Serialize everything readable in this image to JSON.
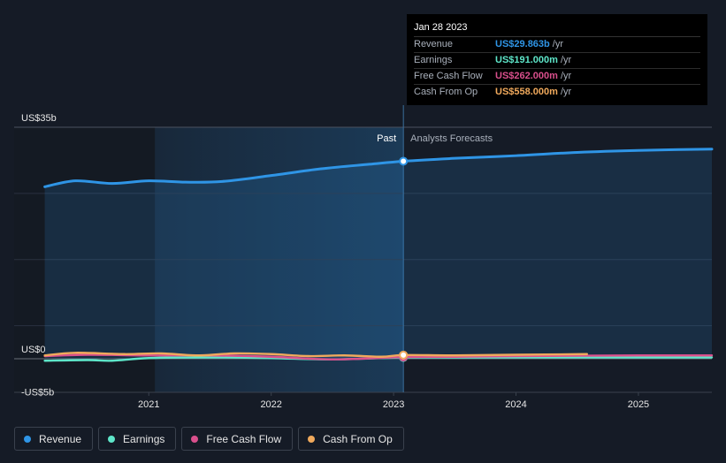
{
  "chart_data": {
    "type": "line",
    "title": "",
    "y_unit": "US$",
    "y_ticks": [
      {
        "value": 35,
        "label": "US$35b"
      },
      {
        "value": 0,
        "label": "US$0"
      },
      {
        "value": -5,
        "label": "-US$5b"
      }
    ],
    "ylim": [
      -5,
      35
    ],
    "x_ticks": [
      {
        "value": 2021,
        "label": "2021"
      },
      {
        "value": 2022,
        "label": "2022"
      },
      {
        "value": 2023,
        "label": "2023"
      },
      {
        "value": 2024,
        "label": "2024"
      },
      {
        "value": 2025,
        "label": "2025"
      }
    ],
    "xlim": [
      2019.9,
      2025.6
    ],
    "past_label": "Past",
    "forecast_label": "Analysts Forecasts",
    "past_start": 2021.05,
    "divider": 2023.08,
    "series": [
      {
        "name": "Revenue",
        "color": "#2f95e6",
        "fill": true,
        "x": [
          2020.15,
          2020.4,
          2020.7,
          2021.0,
          2021.3,
          2021.6,
          2022.0,
          2022.4,
          2022.8,
          2023.08,
          2023.5,
          2024.0,
          2024.5,
          2025.0,
          2025.6
        ],
        "values": [
          26.0,
          26.9,
          26.5,
          26.9,
          26.7,
          26.8,
          27.7,
          28.7,
          29.4,
          29.863,
          30.3,
          30.7,
          31.2,
          31.5,
          31.7
        ]
      },
      {
        "name": "Earnings",
        "color": "#5ee6c9",
        "x": [
          2020.15,
          2020.5,
          2020.7,
          2021.0,
          2021.5,
          2022.0,
          2022.5,
          2023.08,
          2023.5,
          2024.0,
          2025.0,
          2025.6
        ],
        "values": [
          -0.3,
          -0.2,
          -0.3,
          0.1,
          0.2,
          0.1,
          -0.1,
          0.191,
          0.2,
          0.2,
          0.2,
          0.2
        ]
      },
      {
        "name": "Free Cash Flow",
        "color": "#d94f8c",
        "x": [
          2020.15,
          2020.5,
          2021.0,
          2021.5,
          2022.0,
          2022.5,
          2023.08,
          2023.5,
          2024.0,
          2025.0,
          2025.6
        ],
        "values": [
          0.4,
          0.6,
          0.5,
          0.5,
          0.3,
          -0.1,
          0.262,
          0.3,
          0.4,
          0.5,
          0.5
        ]
      },
      {
        "name": "Cash From Op",
        "color": "#f0a95c",
        "x": [
          2020.15,
          2020.4,
          2020.8,
          2021.1,
          2021.4,
          2021.7,
          2022.0,
          2022.3,
          2022.6,
          2022.9,
          2023.08,
          2023.5,
          2024.0,
          2024.58
        ],
        "values": [
          0.5,
          0.9,
          0.7,
          0.8,
          0.5,
          0.8,
          0.7,
          0.4,
          0.5,
          0.3,
          0.558,
          0.5,
          0.6,
          0.7
        ]
      }
    ],
    "highlight_x": 2023.08
  },
  "tooltip": {
    "date": "Jan 28 2023",
    "rows": [
      {
        "name": "Revenue",
        "value": "US$29.863b",
        "unit": "/yr",
        "color": "#2f95e6"
      },
      {
        "name": "Earnings",
        "value": "US$191.000m",
        "unit": "/yr",
        "color": "#5ee6c9"
      },
      {
        "name": "Free Cash Flow",
        "value": "US$262.000m",
        "unit": "/yr",
        "color": "#d94f8c"
      },
      {
        "name": "Cash From Op",
        "value": "US$558.000m",
        "unit": "/yr",
        "color": "#f0a95c"
      }
    ]
  },
  "legend": [
    {
      "label": "Revenue",
      "color": "#2f95e6"
    },
    {
      "label": "Earnings",
      "color": "#5ee6c9"
    },
    {
      "label": "Free Cash Flow",
      "color": "#d94f8c"
    },
    {
      "label": "Cash From Op",
      "color": "#f0a95c"
    }
  ]
}
